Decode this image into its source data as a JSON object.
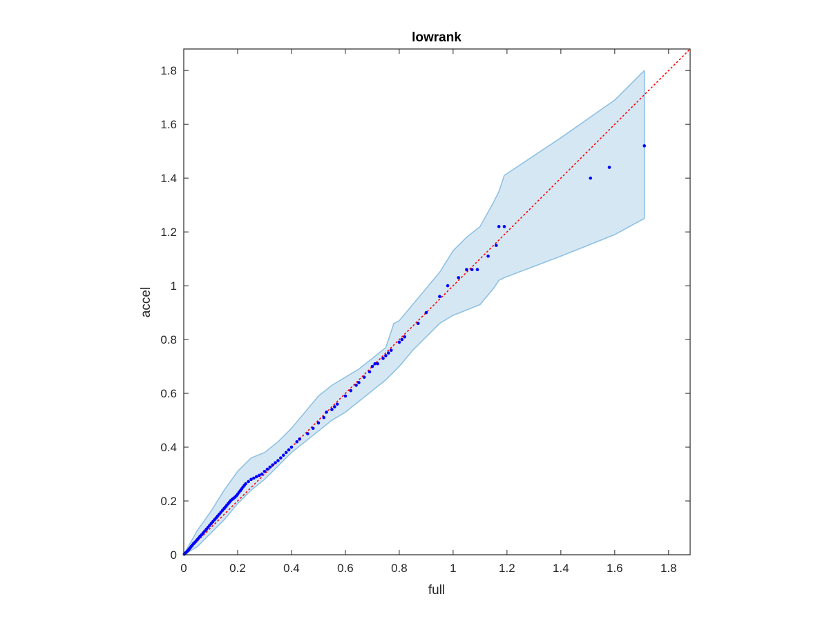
{
  "chart_data": {
    "type": "scatter",
    "title": "lowrank",
    "xlabel": "full",
    "ylabel": "accel",
    "xlim": [
      0,
      1.88
    ],
    "ylim": [
      0,
      1.88
    ],
    "xticks": [
      0,
      0.2,
      0.4,
      0.6,
      0.8,
      1,
      1.2,
      1.4,
      1.6,
      1.8
    ],
    "yticks": [
      0,
      0.2,
      0.4,
      0.6,
      0.8,
      1,
      1.2,
      1.4,
      1.6,
      1.8
    ],
    "xtick_labels": [
      "0",
      "0.2",
      "0.4",
      "0.6",
      "0.8",
      "1",
      "1.2",
      "1.4",
      "1.6",
      "1.8"
    ],
    "ytick_labels": [
      "0",
      "0.2",
      "0.4",
      "0.6",
      "0.8",
      "1",
      "1.2",
      "1.4",
      "1.6",
      "1.8"
    ],
    "grid": false,
    "colors": {
      "points": "#0000ff",
      "reference_line": "#ff0000",
      "band_fill": "#d6e7f4",
      "band_edge": "#8fc1e2",
      "axes": "#262626"
    },
    "reference_line": {
      "style": "dotted",
      "x": [
        0,
        1.88
      ],
      "y": [
        0,
        1.88
      ]
    },
    "band": {
      "x": [
        0,
        0.05,
        0.1,
        0.15,
        0.2,
        0.25,
        0.3,
        0.35,
        0.4,
        0.45,
        0.5,
        0.55,
        0.6,
        0.65,
        0.7,
        0.75,
        0.78,
        0.8,
        0.85,
        0.9,
        0.95,
        1.0,
        1.05,
        1.1,
        1.15,
        1.17,
        1.19,
        1.4,
        1.6,
        1.71
      ],
      "upper": [
        0,
        0.09,
        0.16,
        0.24,
        0.31,
        0.36,
        0.38,
        0.42,
        0.47,
        0.53,
        0.59,
        0.63,
        0.66,
        0.69,
        0.73,
        0.77,
        0.86,
        0.87,
        0.93,
        0.99,
        1.05,
        1.13,
        1.18,
        1.22,
        1.31,
        1.35,
        1.41,
        1.55,
        1.69,
        1.8
      ],
      "lower": [
        0,
        0.03,
        0.08,
        0.13,
        0.19,
        0.24,
        0.28,
        0.33,
        0.38,
        0.42,
        0.46,
        0.5,
        0.53,
        0.57,
        0.61,
        0.65,
        0.68,
        0.7,
        0.76,
        0.81,
        0.86,
        0.89,
        0.91,
        0.93,
        0.99,
        1.02,
        1.03,
        1.11,
        1.19,
        1.25
      ]
    },
    "points": {
      "x": [
        0.002,
        0.005,
        0.008,
        0.011,
        0.014,
        0.017,
        0.02,
        0.024,
        0.028,
        0.032,
        0.036,
        0.04,
        0.045,
        0.05,
        0.055,
        0.06,
        0.066,
        0.072,
        0.078,
        0.084,
        0.09,
        0.096,
        0.102,
        0.108,
        0.114,
        0.12,
        0.126,
        0.132,
        0.138,
        0.144,
        0.15,
        0.155,
        0.16,
        0.165,
        0.17,
        0.175,
        0.18,
        0.185,
        0.19,
        0.195,
        0.2,
        0.205,
        0.21,
        0.215,
        0.22,
        0.225,
        0.23,
        0.24,
        0.25,
        0.26,
        0.27,
        0.28,
        0.29,
        0.3,
        0.31,
        0.32,
        0.33,
        0.34,
        0.35,
        0.36,
        0.37,
        0.38,
        0.39,
        0.4,
        0.42,
        0.43,
        0.46,
        0.48,
        0.5,
        0.52,
        0.53,
        0.55,
        0.56,
        0.57,
        0.6,
        0.62,
        0.64,
        0.65,
        0.67,
        0.69,
        0.7,
        0.71,
        0.72,
        0.74,
        0.75,
        0.76,
        0.77,
        0.8,
        0.81,
        0.82,
        0.87,
        0.9,
        0.95,
        0.98,
        1.02,
        1.05,
        1.07,
        1.09,
        1.13,
        1.16,
        1.17,
        1.19,
        1.51,
        1.58,
        1.71
      ],
      "y": [
        0.002,
        0.005,
        0.008,
        0.011,
        0.014,
        0.017,
        0.021,
        0.026,
        0.031,
        0.036,
        0.041,
        0.045,
        0.05,
        0.056,
        0.062,
        0.068,
        0.074,
        0.081,
        0.088,
        0.095,
        0.102,
        0.109,
        0.116,
        0.123,
        0.13,
        0.137,
        0.144,
        0.151,
        0.158,
        0.165,
        0.172,
        0.178,
        0.184,
        0.19,
        0.196,
        0.202,
        0.206,
        0.21,
        0.214,
        0.219,
        0.225,
        0.232,
        0.238,
        0.245,
        0.252,
        0.258,
        0.264,
        0.272,
        0.28,
        0.285,
        0.29,
        0.295,
        0.3,
        0.31,
        0.318,
        0.326,
        0.334,
        0.342,
        0.35,
        0.36,
        0.37,
        0.38,
        0.39,
        0.4,
        0.42,
        0.43,
        0.45,
        0.47,
        0.49,
        0.51,
        0.53,
        0.54,
        0.55,
        0.56,
        0.59,
        0.61,
        0.63,
        0.64,
        0.66,
        0.68,
        0.7,
        0.71,
        0.71,
        0.73,
        0.74,
        0.75,
        0.76,
        0.79,
        0.8,
        0.81,
        0.86,
        0.9,
        0.96,
        1.0,
        1.03,
        1.06,
        1.06,
        1.06,
        1.11,
        1.15,
        1.22,
        1.22,
        1.4,
        1.44,
        1.52
      ]
    }
  }
}
